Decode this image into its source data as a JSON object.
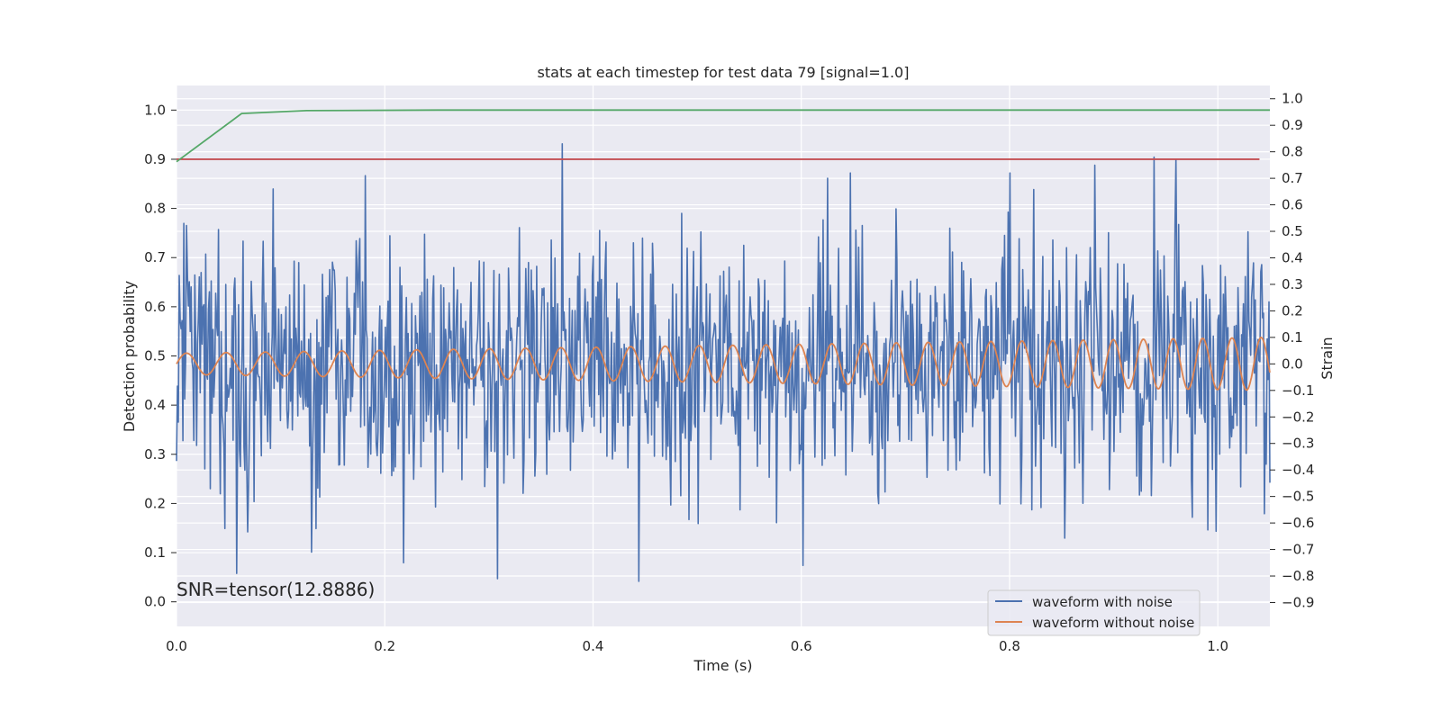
{
  "chart_data": {
    "type": "line",
    "title": "stats at each timestep for test data 79 [signal=1.0]",
    "xlabel": "Time (s)",
    "ylabel": "Detection probability",
    "y2label": "Strain",
    "annotation": "SNR=tensor(12.8886)",
    "xlim": [
      0.0,
      1.05
    ],
    "ylim": [
      -0.05,
      1.05
    ],
    "y2lim": [
      -0.99,
      1.05
    ],
    "x_ticks": [
      "0.0",
      "0.2",
      "0.4",
      "0.6",
      "0.8",
      "1.0"
    ],
    "y_ticks": [
      "0.0",
      "0.1",
      "0.2",
      "0.3",
      "0.4",
      "0.5",
      "0.6",
      "0.7",
      "0.8",
      "0.9",
      "1.0"
    ],
    "y2_ticks": [
      "−0.9",
      "−0.8",
      "−0.7",
      "−0.6",
      "−0.5",
      "−0.4",
      "−0.3",
      "−0.2",
      "−0.1",
      "0.0",
      "0.1",
      "0.2",
      "0.3",
      "0.4",
      "0.5",
      "0.6",
      "0.7",
      "0.8",
      "0.9",
      "1.0"
    ],
    "grid": true,
    "legend_position": "lower-right",
    "detection_probability": {
      "color": "#55a868",
      "x": [
        0.0,
        0.0625,
        0.125,
        0.25,
        0.5,
        0.75,
        1.05
      ],
      "y": [
        0.895,
        0.993,
        0.999,
        1.0,
        1.0,
        1.0,
        1.0
      ]
    },
    "threshold": {
      "color": "#c44e52",
      "y": 0.9,
      "x_range": [
        0.0,
        1.04
      ]
    },
    "series": [
      {
        "name": "waveform with noise",
        "axis": "right",
        "color": "#4c72b0",
        "noise_std": 0.24,
        "range": [
          -0.84,
          0.83
        ],
        "peaks": [
          [
            0.007,
            0.53
          ],
          [
            0.012,
            0.31
          ],
          [
            0.093,
            0.66
          ],
          [
            0.13,
            -0.71
          ],
          [
            0.181,
            0.71
          ],
          [
            0.218,
            -0.75
          ],
          [
            0.308,
            -0.81
          ],
          [
            0.37,
            0.83
          ],
          [
            0.444,
            -0.82
          ],
          [
            0.602,
            -0.76
          ],
          [
            0.625,
            0.7
          ],
          [
            0.647,
            0.72
          ],
          [
            0.8,
            0.72
          ],
          [
            0.939,
            0.78
          ],
          [
            0.96,
            0.77
          ]
        ]
      },
      {
        "name": "waveform without noise",
        "axis": "right",
        "color": "#dd8452",
        "amp_start": 0.04,
        "amp_end": 0.1,
        "freq_start": 26,
        "freq_end": 36
      }
    ]
  }
}
